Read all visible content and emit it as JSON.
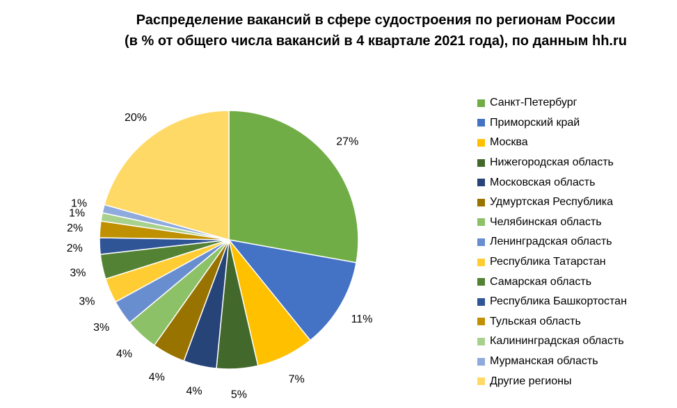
{
  "title": {
    "line1": "Распределение вакансий в сфере судостроения по регионам России",
    "line2": "(в % от общего числа вакансий в 4 квартале 2021 года), по данным hh.ru"
  },
  "chart_data": {
    "type": "pie",
    "title": "Распределение вакансий в сфере судостроения по регионам России (в % от общего числа вакансий в 4 квартале 2021 года), по данным hh.ru",
    "legend": "right",
    "slices": [
      {
        "name": "Санкт-Петербург",
        "value": 27,
        "label": "27%",
        "color": "#70AD47"
      },
      {
        "name": "Приморский край",
        "value": 11,
        "label": "11%",
        "color": "#4472C4"
      },
      {
        "name": "Москва",
        "value": 7,
        "label": "7%",
        "color": "#FFC000"
      },
      {
        "name": "Нижегородская область",
        "value": 5,
        "label": "5%",
        "color": "#43682B"
      },
      {
        "name": "Московская область",
        "value": 4,
        "label": "4%",
        "color": "#264478"
      },
      {
        "name": "Удмуртская Республика",
        "value": 4,
        "label": "4%",
        "color": "#997300"
      },
      {
        "name": "Челябинская область",
        "value": 4,
        "label": "4%",
        "color": "#8CC168"
      },
      {
        "name": "Ленинградская область",
        "value": 3,
        "label": "3%",
        "color": "#698ED0"
      },
      {
        "name": "Республика Татарстан",
        "value": 3,
        "label": "3%",
        "color": "#FFCD33"
      },
      {
        "name": "Самарская область",
        "value": 3,
        "label": "3%",
        "color": "#548235"
      },
      {
        "name": "Республика Башкортостан",
        "value": 2,
        "label": "2%",
        "color": "#2F5597"
      },
      {
        "name": "Тульская область",
        "value": 2,
        "label": "2%",
        "color": "#BF9000"
      },
      {
        "name": "Калининградская область",
        "value": 1,
        "label": "1%",
        "color": "#A9D18E"
      },
      {
        "name": "Мурманская область",
        "value": 1,
        "label": "1%",
        "color": "#8FAADC"
      },
      {
        "name": "Другие регионы",
        "value": 20,
        "label": "20%",
        "color": "#FFD966"
      }
    ]
  }
}
